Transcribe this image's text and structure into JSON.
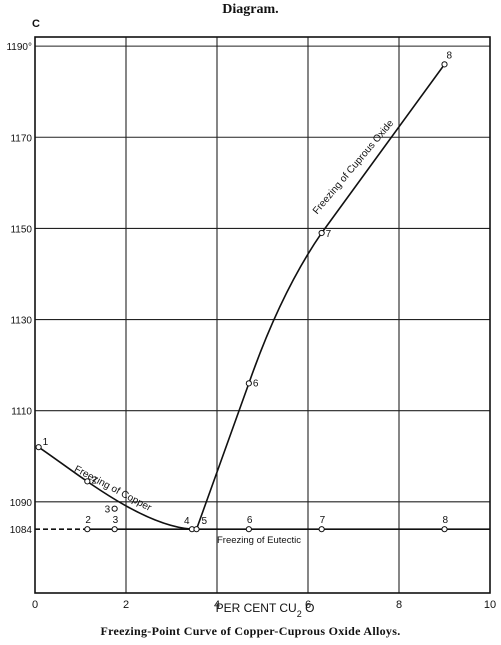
{
  "heading": "Diagram.",
  "caption": "Freezing-Point Curve of Copper-Cuprous Oxide Alloys.",
  "chart_data": {
    "type": "line",
    "title": "",
    "xlabel": "PER CENT CU2O",
    "ylabel": "C",
    "xlim": [
      0,
      10
    ],
    "ylim": [
      1070,
      1192
    ],
    "x_ticks": [
      "0",
      "2",
      "4",
      "6",
      "8",
      "10"
    ],
    "y_ticks": [
      "1090",
      "1110",
      "1130",
      "1150",
      "1170",
      "1190°"
    ],
    "special_y_tick": {
      "value": 1084,
      "label": "1084"
    },
    "grid": true,
    "curve_labels": {
      "copper": "Freezing of Copper",
      "cuprous_oxide": "Freezing of Cuprous Oxide",
      "eutectic": "Freezing of Eutectic"
    },
    "series": [
      {
        "name": "Freezing of Copper",
        "points": [
          {
            "x": 0.08,
            "y": 1102,
            "label": "1"
          },
          {
            "x": 1.15,
            "y": 1094.5,
            "label": "2"
          },
          {
            "x": 1.75,
            "y": 1088.5,
            "label": "3"
          },
          {
            "x": 3.45,
            "y": 1084,
            "label": "4"
          }
        ]
      },
      {
        "name": "Freezing of Cuprous Oxide",
        "points": [
          {
            "x": 3.55,
            "y": 1084,
            "label": "5"
          },
          {
            "x": 4.7,
            "y": 1116,
            "label": "6"
          },
          {
            "x": 6.3,
            "y": 1149,
            "label": "7"
          },
          {
            "x": 9.0,
            "y": 1186,
            "label": "8"
          }
        ]
      },
      {
        "name": "Freezing of Eutectic",
        "points": [
          {
            "x": 1.15,
            "y": 1084,
            "label": "2"
          },
          {
            "x": 1.75,
            "y": 1084,
            "label": "3"
          },
          {
            "x": 4.7,
            "y": 1084,
            "label": "6"
          },
          {
            "x": 6.3,
            "y": 1084,
            "label": "7"
          },
          {
            "x": 9.0,
            "y": 1084,
            "label": "8"
          }
        ]
      }
    ]
  }
}
